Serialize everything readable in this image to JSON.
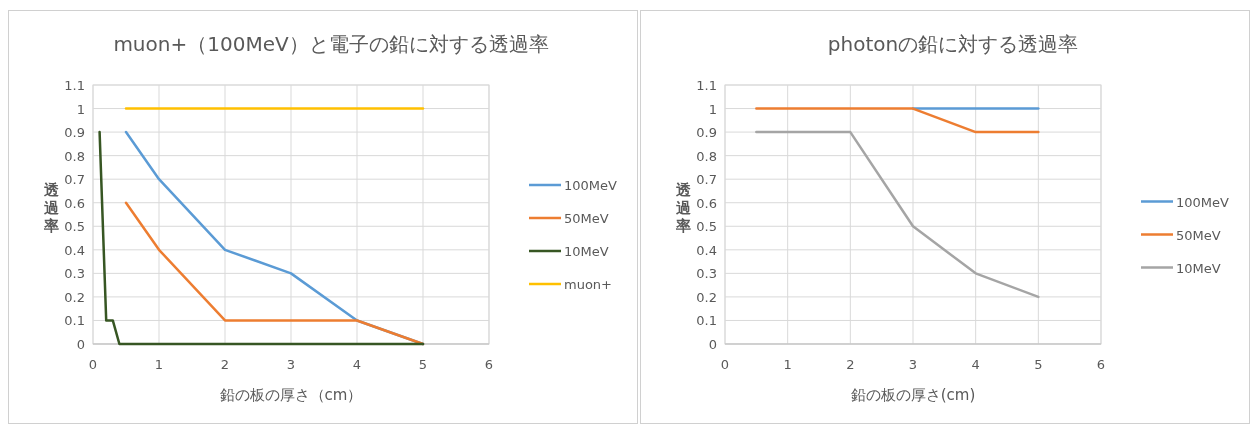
{
  "chart_data": [
    {
      "type": "line",
      "title": "muon+（100MeV）と電子の鉛に対する透過率",
      "xlabel": "鉛の板の厚さ（cm）",
      "ylabel": "透過率",
      "xlim": [
        0,
        6
      ],
      "xticks": [
        0,
        1,
        2,
        3,
        4,
        5,
        6
      ],
      "ylim": [
        0,
        1.1
      ],
      "yticks": [
        0,
        0.1,
        0.2,
        0.3,
        0.4,
        0.5,
        0.6,
        0.7,
        0.8,
        0.9,
        1,
        1.1
      ],
      "grid": true,
      "legend": "right",
      "series": [
        {
          "name": "100MeV",
          "color": "#5b9bd5",
          "x": [
            0.5,
            1,
            2,
            3,
            4,
            5
          ],
          "values": [
            0.9,
            0.7,
            0.4,
            0.3,
            0.1,
            0
          ]
        },
        {
          "name": "50MeV",
          "color": "#ed7d31",
          "x": [
            0.5,
            1,
            2,
            3,
            4,
            5
          ],
          "values": [
            0.6,
            0.4,
            0.1,
            0.1,
            0.1,
            0
          ]
        },
        {
          "name": "10MeV",
          "color": "#375623",
          "x": [
            0.1,
            0.2,
            0.3,
            0.4,
            0.5,
            1,
            2,
            3,
            4,
            5
          ],
          "values": [
            0.9,
            0.1,
            0.1,
            0,
            0,
            0,
            0,
            0,
            0,
            0
          ]
        },
        {
          "name": "muon+",
          "color": "#ffc000",
          "x": [
            0.5,
            1,
            2,
            3,
            4,
            5
          ],
          "values": [
            1,
            1,
            1,
            1,
            1,
            1
          ]
        }
      ]
    },
    {
      "type": "line",
      "title": "photonの鉛に対する透過率",
      "xlabel": "鉛の板の厚さ(cm)",
      "ylabel": "透過率",
      "xlim": [
        0,
        6
      ],
      "xticks": [
        0,
        1,
        2,
        3,
        4,
        5,
        6
      ],
      "ylim": [
        0,
        1.1
      ],
      "yticks": [
        0,
        0.1,
        0.2,
        0.3,
        0.4,
        0.5,
        0.6,
        0.7,
        0.8,
        0.9,
        1,
        1.1
      ],
      "grid": true,
      "legend": "right",
      "series": [
        {
          "name": "100MeV",
          "color": "#5b9bd5",
          "x": [
            3,
            4,
            5
          ],
          "values": [
            1,
            1,
            1
          ]
        },
        {
          "name": "50MeV",
          "color": "#ed7d31",
          "x": [
            0.5,
            1,
            2,
            3,
            4,
            5
          ],
          "values": [
            1,
            1,
            1,
            1,
            0.9,
            0.9
          ]
        },
        {
          "name": "10MeV",
          "color": "#a5a5a5",
          "x": [
            0.5,
            1,
            2,
            3,
            4,
            5
          ],
          "values": [
            0.9,
            0.9,
            0.9,
            0.5,
            0.3,
            0.2
          ]
        }
      ]
    }
  ]
}
